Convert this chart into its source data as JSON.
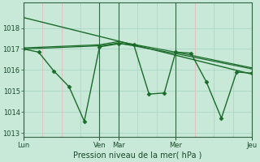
{
  "background_color": "#c8e8d8",
  "plot_bg_color": "#c8e8d8",
  "grid_color_h": "#b0d8c8",
  "grid_color_v": "#e0b8b8",
  "line_color": "#1a6b2a",
  "marker_color": "#1a6b2a",
  "xlabel": "Pression niveau de la mer( hPa )",
  "ylim": [
    1012.8,
    1019.2
  ],
  "yticks": [
    1013,
    1014,
    1015,
    1016,
    1017,
    1018
  ],
  "xtick_labels": [
    "Lun",
    "Ven",
    "Mar",
    "Mer",
    "Jeu"
  ],
  "xtick_positions": [
    0,
    40,
    50,
    80,
    120
  ],
  "vline_positions": [
    0,
    40,
    50,
    80,
    120
  ],
  "total_x": 120,
  "series": [
    {
      "x": [
        0,
        8,
        16,
        24,
        32,
        40,
        50,
        58,
        66,
        74,
        80,
        88,
        96,
        104,
        112,
        120
      ],
      "y": [
        1017.0,
        1016.85,
        1015.95,
        1015.2,
        1013.55,
        1017.1,
        1017.25,
        1017.2,
        1014.85,
        1014.9,
        1016.85,
        1016.8,
        1015.45,
        1013.7,
        1015.9,
        1015.85
      ],
      "marker": "D",
      "markersize": 2.5,
      "linewidth": 1.0
    },
    {
      "x": [
        0,
        120
      ],
      "y": [
        1018.5,
        1015.8
      ],
      "marker": null,
      "markersize": 0,
      "linewidth": 1.0
    },
    {
      "x": [
        0,
        40,
        50,
        80,
        120
      ],
      "y": [
        1017.05,
        1017.2,
        1017.35,
        1016.85,
        1016.1
      ],
      "marker": null,
      "markersize": 0,
      "linewidth": 0.9
    },
    {
      "x": [
        0,
        40,
        50,
        80,
        120
      ],
      "y": [
        1017.0,
        1017.15,
        1017.28,
        1016.78,
        1016.05
      ],
      "marker": null,
      "markersize": 0,
      "linewidth": 0.9
    }
  ]
}
